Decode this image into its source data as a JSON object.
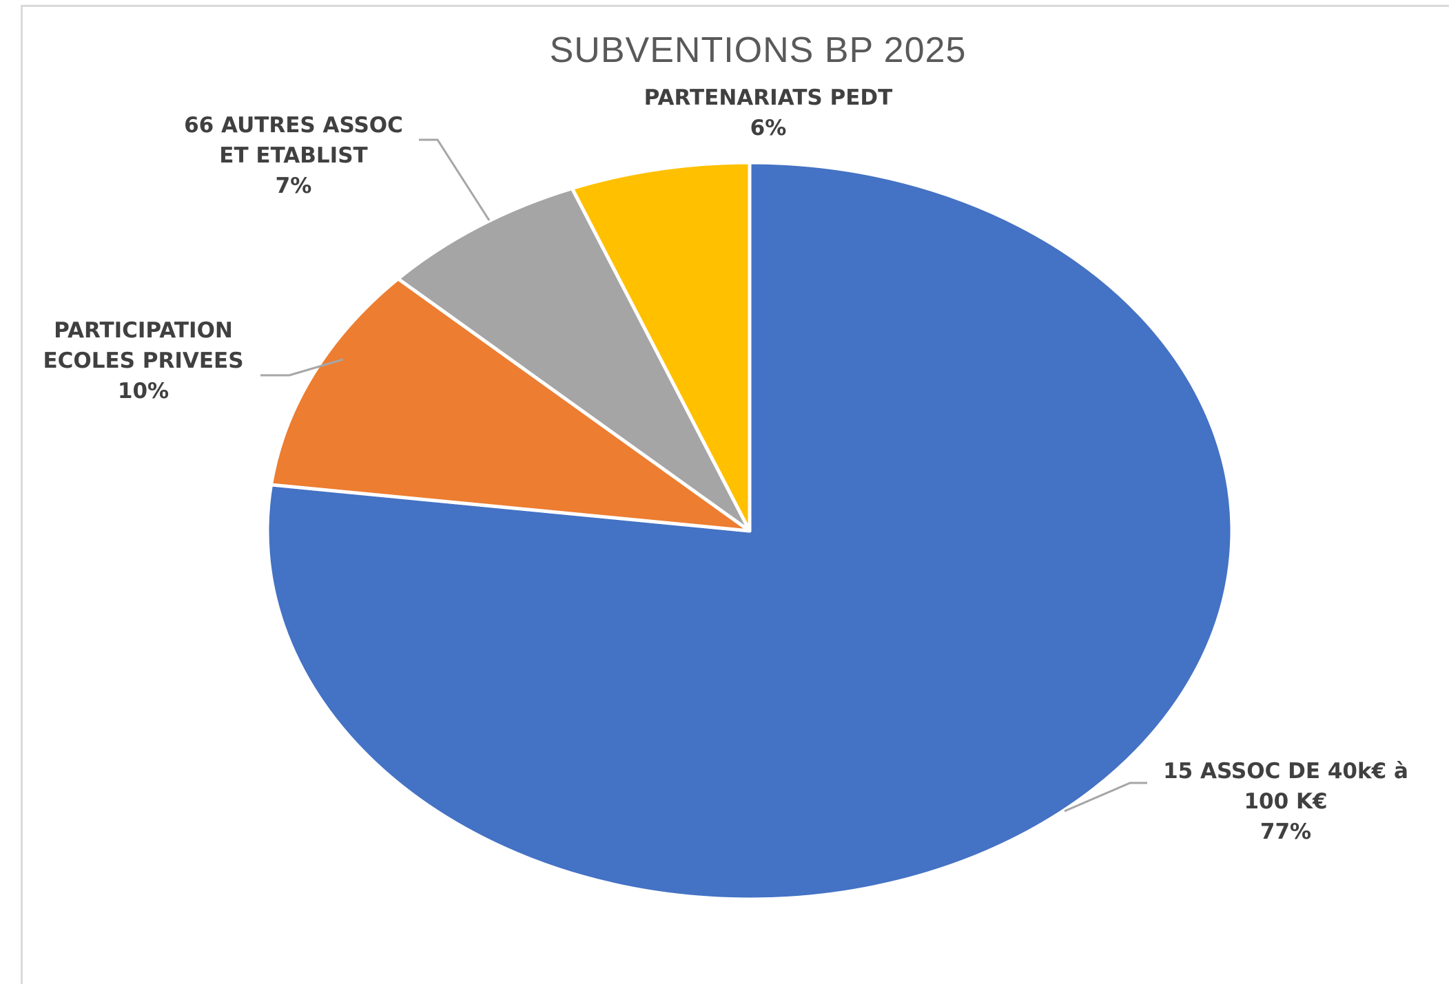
{
  "chart_data": {
    "type": "pie",
    "title": "SUBVENTIONS BP 2025",
    "slices": [
      {
        "name": "15 ASSOC DE 40k€ à 100 K€",
        "label_lines": [
          "15 ASSOC DE 40k€ à",
          "100 K€"
        ],
        "value": 77,
        "value_label": "77%",
        "color": "#4472c4"
      },
      {
        "name": "PARTICIPATION ECOLES PRIVEES",
        "label_lines": [
          "PARTICIPATION",
          "ECOLES PRIVEES"
        ],
        "value": 10,
        "value_label": "10%",
        "color": "#ed7d31"
      },
      {
        "name": "66 AUTRES ASSOC ET ETABLIST",
        "label_lines": [
          "66 AUTRES ASSOC",
          "ET ETABLIST"
        ],
        "value": 7,
        "value_label": "7%",
        "color": "#a5a5a5"
      },
      {
        "name": "PARTENARIATS PEDT",
        "label_lines": [
          "PARTENARIATS PEDT"
        ],
        "value": 6,
        "value_label": "6%",
        "color": "#ffc000"
      }
    ],
    "start_angle": "12 o'clock",
    "direction": "clockwise",
    "legend": "none"
  }
}
